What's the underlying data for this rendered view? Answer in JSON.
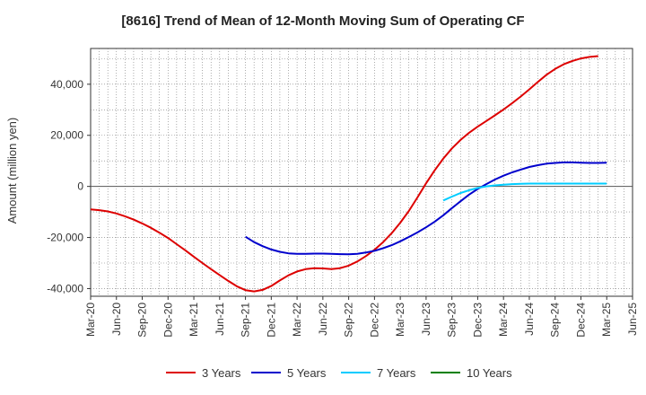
{
  "chart_data": {
    "type": "line",
    "title": "[8616]  Trend of Mean of 12-Month Moving Sum of Operating CF",
    "xlabel": "",
    "ylabel": "Amount (million yen)",
    "ylim": [
      -43000,
      54000
    ],
    "yticks": [
      -40000,
      -20000,
      0,
      20000,
      40000
    ],
    "ytick_labels": [
      "-40,000",
      "-20,000",
      "0",
      "20,000",
      "40,000"
    ],
    "xtick_labels": [
      "Mar-20",
      "Jun-20",
      "Sep-20",
      "Dec-20",
      "Mar-21",
      "Jun-21",
      "Sep-21",
      "Dec-21",
      "Mar-22",
      "Jun-22",
      "Sep-22",
      "Dec-22",
      "Mar-23",
      "Jun-23",
      "Sep-23",
      "Dec-23",
      "Mar-24",
      "Jun-24",
      "Sep-24",
      "Dec-24",
      "Mar-25",
      "Jun-25"
    ],
    "grid": true,
    "legend_position": "bottom",
    "series": [
      {
        "name": "3 Years",
        "color": "#dd0000",
        "x": [
          0,
          1,
          2,
          3,
          4,
          5,
          6,
          7,
          8,
          9,
          10,
          11,
          12,
          13,
          14,
          15,
          16,
          17,
          18,
          19,
          20,
          21,
          22,
          23,
          24,
          25,
          26,
          27,
          28,
          29,
          30,
          31,
          32,
          33,
          34,
          35,
          36,
          37,
          38,
          39,
          40,
          41,
          42,
          43,
          44,
          45,
          46,
          47,
          48,
          49,
          50,
          51,
          52,
          53,
          54,
          55,
          56,
          57,
          58,
          59,
          60
        ],
        "values": [
          -9000,
          -9300,
          -9800,
          -10600,
          -11700,
          -13000,
          -14500,
          -16200,
          -18100,
          -20200,
          -22600,
          -25000,
          -27500,
          -30000,
          -32400,
          -34700,
          -37000,
          -39100,
          -40600,
          -41100,
          -40500,
          -39000,
          -36800,
          -34800,
          -33300,
          -32400,
          -32000,
          -32100,
          -32400,
          -32000,
          -31000,
          -29400,
          -27300,
          -24800,
          -21800,
          -18300,
          -14200,
          -9600,
          -4300,
          1200,
          6300,
          10900,
          14900,
          18200,
          21000,
          23400,
          25600,
          27800,
          30100,
          32600,
          35200,
          38000,
          40900,
          43700,
          46000,
          47800,
          49100,
          50100,
          50700,
          51000,
          null
        ],
        "start": 0
      },
      {
        "name": "5 Years",
        "color": "#0000cc",
        "x": [
          18,
          19,
          20,
          21,
          22,
          23,
          24,
          25,
          26,
          27,
          28,
          29,
          30,
          31,
          32,
          33,
          34,
          35,
          36,
          37,
          38,
          39,
          40,
          41,
          42,
          43,
          44,
          45,
          46,
          47,
          48,
          49,
          50,
          51,
          52,
          53,
          54,
          55,
          56,
          57,
          58,
          59,
          60
        ],
        "values": [
          -19700,
          -21800,
          -23400,
          -24700,
          -25600,
          -26200,
          -26400,
          -26400,
          -26300,
          -26300,
          -26400,
          -26500,
          -26600,
          -26400,
          -25900,
          -25200,
          -24200,
          -23000,
          -21500,
          -19800,
          -18000,
          -16000,
          -13800,
          -11300,
          -8500,
          -5800,
          -3200,
          -1000,
          900,
          2700,
          4200,
          5500,
          6600,
          7600,
          8300,
          8900,
          9200,
          9400,
          9400,
          9300,
          9200,
          9200,
          9300
        ],
        "start": 18
      },
      {
        "name": "7 Years",
        "color": "#00ccff",
        "x": [
          41,
          42,
          43,
          44,
          45,
          46,
          47,
          48,
          49,
          50,
          51,
          52,
          53,
          54,
          55,
          56,
          57,
          58,
          59,
          60
        ],
        "values": [
          -5500,
          -4000,
          -2600,
          -1500,
          -600,
          0,
          400,
          700,
          900,
          1000,
          1100,
          1100,
          1100,
          1100,
          1100,
          1100,
          1100,
          1100,
          1100,
          1100
        ]
      },
      {
        "name": "10 Years",
        "color": "#008000",
        "x": [],
        "values": []
      }
    ]
  }
}
